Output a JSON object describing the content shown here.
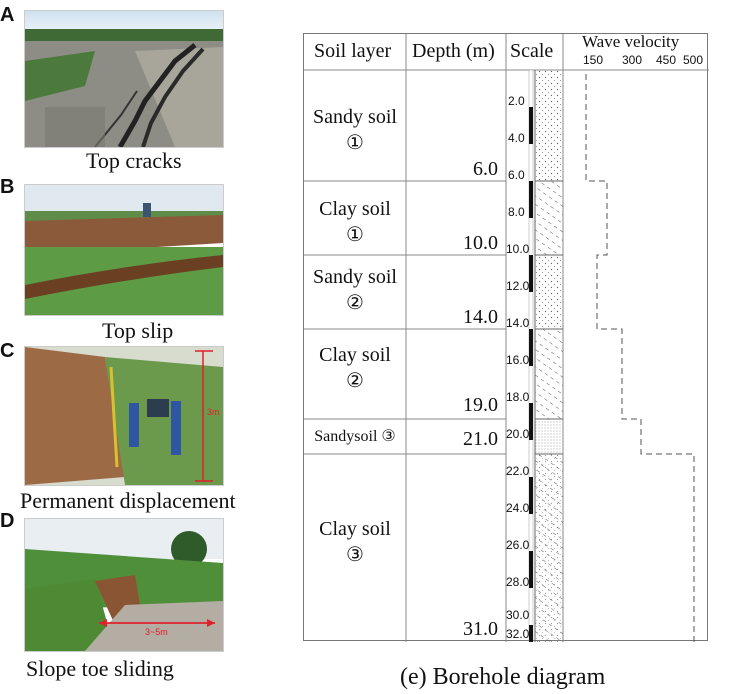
{
  "photos": [
    {
      "letter": "A",
      "caption": "Top cracks"
    },
    {
      "letter": "B",
      "caption": "Top slip"
    },
    {
      "letter": "C",
      "caption": "Permanent displacement",
      "annotation": "3m"
    },
    {
      "letter": "D",
      "caption": "Slope toe sliding",
      "annotation": "3~5m"
    }
  ],
  "borehole": {
    "headers": {
      "layer": "Soil layer",
      "depth": "Depth (m)",
      "scale": "Scale",
      "velocity": "Wave velocity"
    },
    "velocity_ticks": [
      "150",
      "300",
      "450",
      "500"
    ],
    "layers": [
      {
        "name": "Sandy soil ①",
        "line1": "Sandy soil",
        "line2": "①",
        "depth": "6.0"
      },
      {
        "name": "Clay soil ①",
        "line1": "Clay soil",
        "line2": "①",
        "depth": "10.0"
      },
      {
        "name": "Sandy soil ②",
        "line1": "Sandy soil",
        "line2": "②",
        "depth": "14.0"
      },
      {
        "name": "Clay soil ②",
        "line1": "Clay soil",
        "line2": "②",
        "depth": "19.0"
      },
      {
        "name": "Sandysoil ③",
        "line1": "Sandysoil ③",
        "line2": "",
        "depth": "21.0"
      },
      {
        "name": "Clay soil ③",
        "line1": "Clay soil",
        "line2": "③",
        "depth": "31.0"
      }
    ],
    "scale_ticks": [
      "2.0",
      "4.0",
      "6.0",
      "8.0",
      "10.0",
      "12.0",
      "14.0",
      "16.0",
      "18.0",
      "20.0",
      "22.0",
      "24.0",
      "26.0",
      "28.0",
      "30.0",
      "32.0"
    ],
    "caption": "(e) Borehole diagram"
  }
}
